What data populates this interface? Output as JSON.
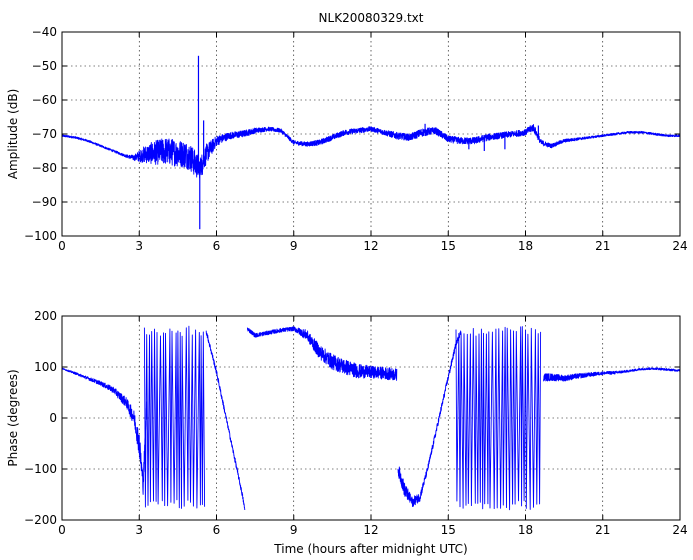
{
  "chart_data": [
    {
      "type": "line",
      "title": "NLK20080329.txt",
      "xlabel": "",
      "ylabel": "Amplitude (dB)",
      "xlim": [
        0,
        24
      ],
      "ylim": [
        -100,
        -40
      ],
      "xticks": [
        "0",
        "3",
        "6",
        "9",
        "12",
        "15",
        "18",
        "21",
        "24"
      ],
      "yticks": [
        "−40",
        "−50",
        "−60",
        "−70",
        "−80",
        "−90",
        "−100"
      ],
      "xtick_values": [
        0,
        3,
        6,
        9,
        12,
        15,
        18,
        21,
        24
      ],
      "ytick_values": [
        -40,
        -50,
        -60,
        -70,
        -80,
        -90,
        -100
      ],
      "grid": true,
      "line_color": "#0000ff",
      "series": [
        {
          "x": [
            0,
            0.5,
            1.0,
            1.5,
            2.0,
            2.5,
            2.8,
            3.2,
            3.6,
            4.0,
            4.4,
            4.8,
            5.0,
            5.2,
            5.35,
            5.6,
            6.0,
            6.5,
            7.0,
            7.5,
            8.0,
            8.5,
            9.0,
            9.5,
            10.0,
            10.5,
            11.0,
            11.5,
            12.0,
            12.5,
            13.0,
            13.5,
            14.0,
            14.5,
            15.0,
            15.5,
            16.0,
            16.5,
            17.0,
            17.5,
            18.0,
            18.3,
            18.6,
            19.0,
            19.5,
            20.0,
            20.5,
            21.0,
            21.5,
            22.0,
            22.5,
            23.0,
            23.5,
            24.0
          ],
          "values": [
            -70.5,
            -71,
            -72,
            -73.5,
            -75,
            -76.5,
            -77,
            -76,
            -75.5,
            -75,
            -75.5,
            -76,
            -77,
            -79,
            -80,
            -76,
            -72,
            -70.5,
            -70,
            -69,
            -68.5,
            -69,
            -72.5,
            -73,
            -72.5,
            -71,
            -69.5,
            -69,
            -68.5,
            -69.5,
            -70.5,
            -71,
            -69.5,
            -69,
            -71.5,
            -72,
            -72,
            -71,
            -70.5,
            -70,
            -69.5,
            -68,
            -72.5,
            -73.5,
            -72,
            -71.5,
            -71,
            -70.5,
            -70,
            -69.5,
            -69.5,
            -70,
            -70.5,
            -70.5
          ],
          "noise": [
            0.3,
            0.3,
            0.3,
            0.3,
            0.3,
            0.4,
            0.8,
            2.5,
            3.5,
            4.0,
            4.0,
            4.0,
            4.0,
            4.0,
            3.0,
            3.0,
            1.5,
            1.0,
            1.0,
            0.8,
            0.6,
            0.6,
            0.6,
            0.7,
            0.8,
            0.8,
            0.8,
            0.8,
            0.7,
            0.8,
            1.0,
            1.0,
            1.2,
            1.0,
            1.0,
            1.0,
            1.0,
            1.0,
            0.9,
            0.9,
            0.9,
            1.2,
            0.8,
            0.6,
            0.5,
            0.4,
            0.3,
            0.3,
            0.3,
            0.3,
            0.3,
            0.3,
            0.3,
            0.3
          ],
          "spikes": [
            {
              "x": 5.3,
              "y": -47
            },
            {
              "x": 5.35,
              "y": -98
            },
            {
              "x": 5.45,
              "y": -82
            },
            {
              "x": 5.5,
              "y": -66
            },
            {
              "x": 14.1,
              "y": -67
            },
            {
              "x": 15.8,
              "y": -74.5
            },
            {
              "x": 16.4,
              "y": -75
            },
            {
              "x": 17.2,
              "y": -74.5
            },
            {
              "x": 18.5,
              "y": -67.5
            }
          ]
        }
      ]
    },
    {
      "type": "line",
      "title": "",
      "xlabel": "Time (hours after midnight UTC)",
      "ylabel": "Phase (degrees)",
      "xlim": [
        0,
        24
      ],
      "ylim": [
        -200,
        200
      ],
      "xticks": [
        "0",
        "3",
        "6",
        "9",
        "12",
        "15",
        "18",
        "21",
        "24"
      ],
      "yticks": [
        "200",
        "100",
        "0",
        "−100",
        "−200"
      ],
      "xtick_values": [
        0,
        3,
        6,
        9,
        12,
        15,
        18,
        21,
        24
      ],
      "ytick_values": [
        200,
        100,
        0,
        -100,
        -200
      ],
      "grid": true,
      "line_color": "#0000ff",
      "series": [
        {
          "x": [
            0,
            0.5,
            1.0,
            1.5,
            2.0,
            2.5,
            2.8,
            3.0,
            3.15,
            3.3
          ],
          "values": [
            97,
            88,
            78,
            68,
            55,
            30,
            0,
            -50,
            -130,
            30
          ],
          "noise": [
            1,
            2,
            3,
            4,
            6,
            10,
            15,
            25,
            20,
            20
          ]
        },
        {
          "x": [
            5.6,
            6.0,
            6.5,
            7.0,
            7.1
          ],
          "values": [
            170,
            90,
            -30,
            -150,
            -180
          ],
          "noise": [
            5,
            5,
            5,
            5,
            3
          ]
        },
        {
          "x": [
            7.2,
            7.5,
            8.0,
            8.5,
            9.0,
            9.5,
            10.0,
            10.5,
            11.0,
            11.5,
            12.0,
            12.5,
            13.0
          ],
          "values": [
            175,
            162,
            167,
            172,
            175,
            163,
            130,
            110,
            100,
            92,
            90,
            88,
            85
          ],
          "noise": [
            4,
            4,
            4,
            4,
            4,
            10,
            14,
            15,
            15,
            14,
            12,
            12,
            12
          ]
        },
        {
          "x": [
            13.05,
            13.3,
            13.6,
            13.9,
            14.2,
            14.6,
            15.0,
            15.3,
            15.5
          ],
          "values": [
            -100,
            -140,
            -165,
            -155,
            -100,
            -10,
            80,
            145,
            170
          ],
          "noise": [
            12,
            14,
            10,
            8,
            6,
            6,
            6,
            5,
            4
          ]
        },
        {
          "x": [
            18.7,
            19.0,
            19.5,
            20.0,
            20.5,
            21.0,
            21.5,
            22.0,
            22.5,
            23.0,
            23.5,
            24.0
          ],
          "values": [
            80,
            80,
            78,
            82,
            85,
            88,
            89,
            92,
            96,
            97,
            95,
            93
          ],
          "noise": [
            8,
            7,
            6,
            5,
            4,
            3,
            3,
            2,
            2,
            2,
            2,
            2
          ]
        }
      ],
      "wrapping_bursts": [
        {
          "from": 3.2,
          "to": 5.6
        },
        {
          "from": 15.3,
          "to": 18.6
        }
      ]
    }
  ]
}
